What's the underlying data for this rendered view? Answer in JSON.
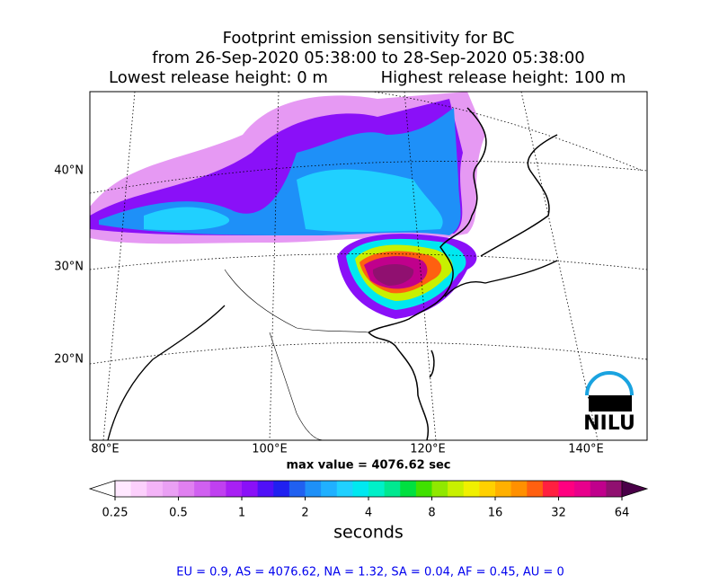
{
  "header": {
    "title": "Footprint emission sensitivity for BC",
    "period": "from 26-Sep-2020 05:38:00 to 28-Sep-2020 05:38:00",
    "lowest_height": "Lowest release height: 0 m",
    "highest_height": "Highest release height: 100 m"
  },
  "map": {
    "lat_labels": [
      "40°N",
      "30°N",
      "20°N"
    ],
    "lon_labels": [
      "80°E",
      "100°E",
      "120°E",
      "140°E"
    ],
    "max_value": "max value = 4076.62 sec",
    "logo": "NILU"
  },
  "colorbar": {
    "scale": "log",
    "lim": [
      0.25,
      64
    ],
    "ticks": [
      0.25,
      0.5,
      1,
      2,
      4,
      8,
      16,
      32,
      64
    ],
    "label": "seconds",
    "colors": [
      "#ffe8ff",
      "#fcd0fc",
      "#f4b4f8",
      "#eaa0f4",
      "#e080f0",
      "#d060f0",
      "#c040f0",
      "#a820f4",
      "#8a10f8",
      "#5010f8",
      "#2020f0",
      "#2060f0",
      "#1e90f8",
      "#20b0ff",
      "#20d0ff",
      "#00e8f0",
      "#00f0c8",
      "#00e890",
      "#00e040",
      "#40e000",
      "#90e800",
      "#c8f000",
      "#f0f000",
      "#ffd000",
      "#ffb000",
      "#ff9000",
      "#ff6010",
      "#ff2040",
      "#ff0080",
      "#e8008c",
      "#c0008c",
      "#901070"
    ]
  },
  "footer": "EU = 0.9,  AS = 4076.62,  NA = 1.32,  SA = 0.04,  AF = 0.45,  AU = 0"
}
